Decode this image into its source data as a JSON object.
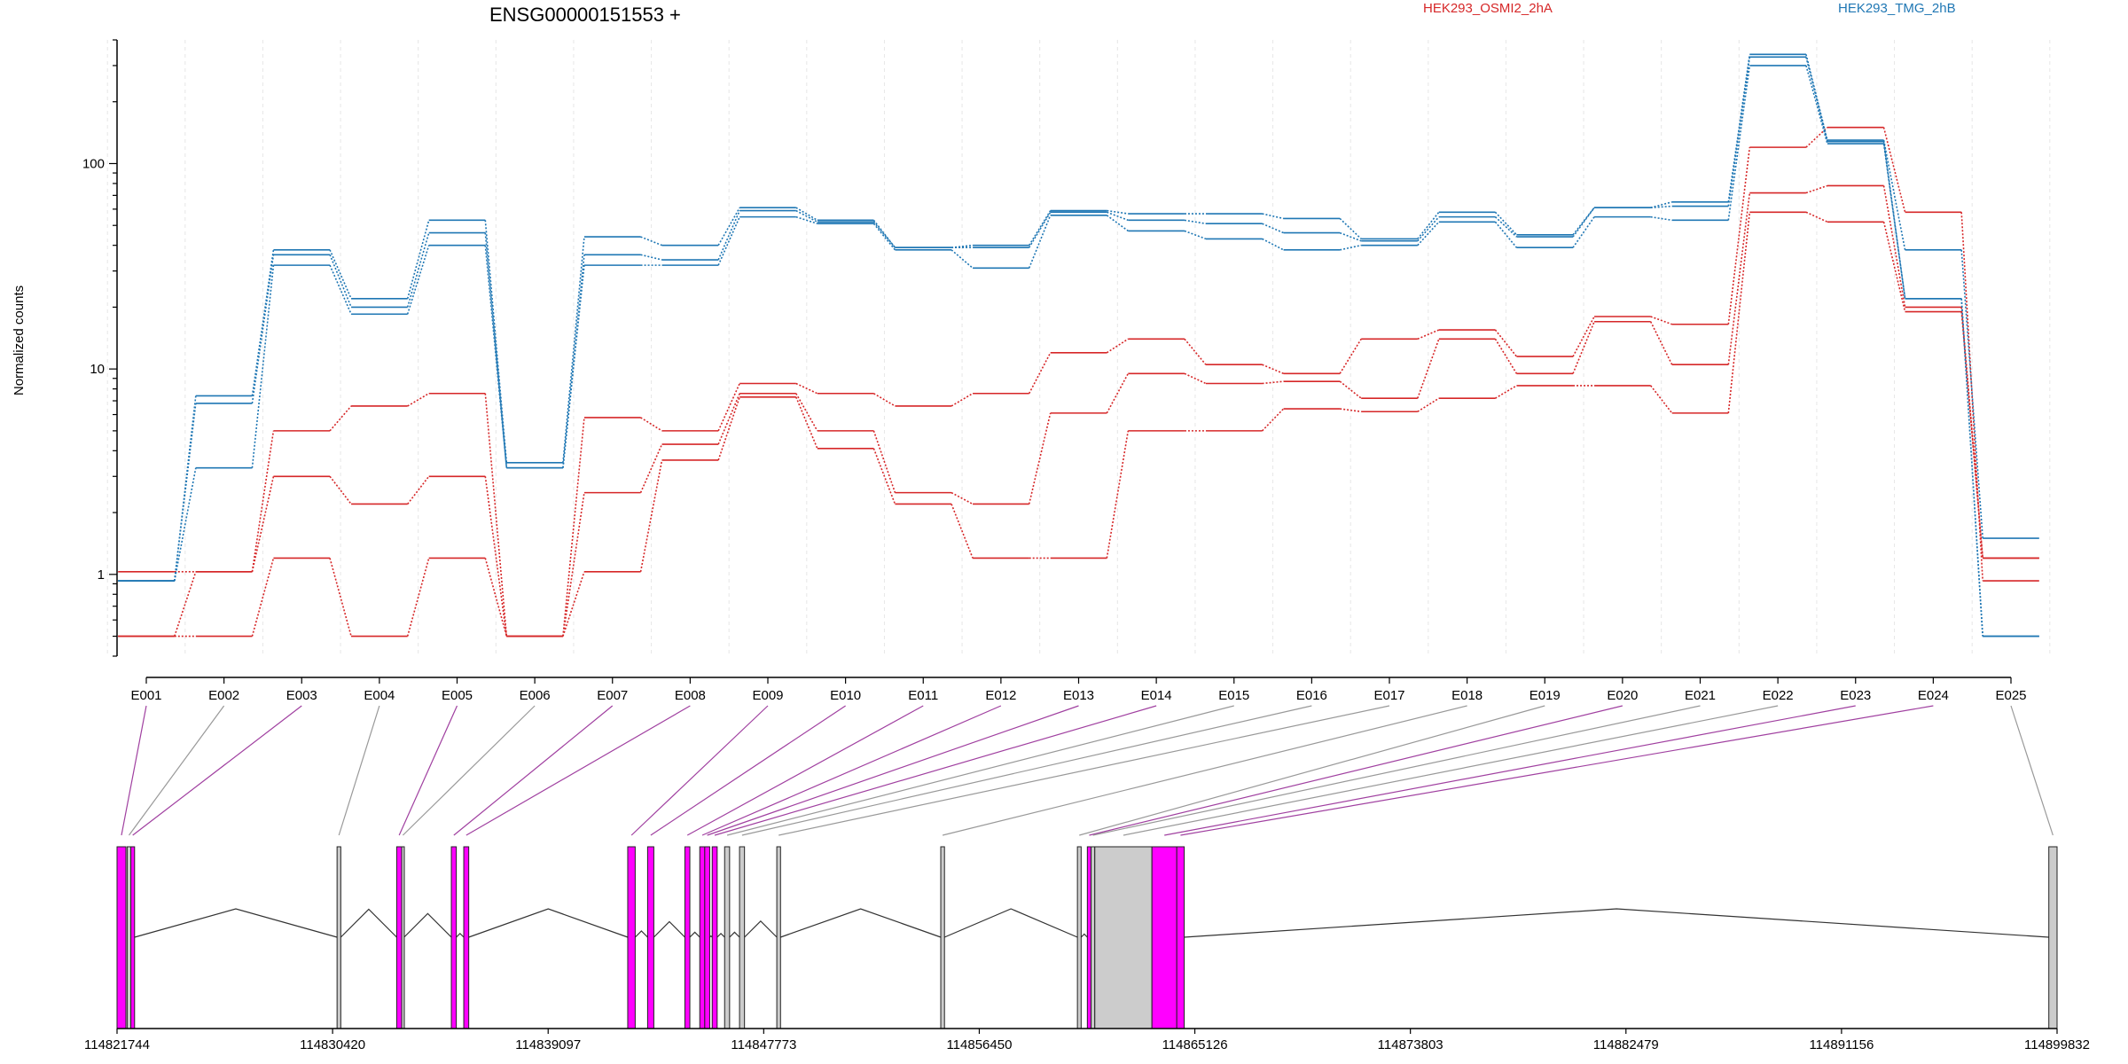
{
  "chart_data": {
    "type": "line",
    "title": "ENSG00000151553 +",
    "ylabel": "Normalized counts",
    "xlabel": "",
    "y_scale": "log",
    "ylim": [
      0.4,
      400
    ],
    "y_ticks": [
      {
        "value": 1,
        "label": "1"
      },
      {
        "value": 10,
        "label": "10"
      },
      {
        "value": 100,
        "label": "100"
      }
    ],
    "grid": "vertical",
    "legend_placement": "top",
    "categories": [
      "E001",
      "E002",
      "E003",
      "E004",
      "E005",
      "E006",
      "E007",
      "E008",
      "E009",
      "E010",
      "E011",
      "E012",
      "E013",
      "E014",
      "E015",
      "E016",
      "E017",
      "E018",
      "E019",
      "E020",
      "E021",
      "E022",
      "E023",
      "E024",
      "E025"
    ],
    "groups": [
      {
        "label": "HEK293_OSMI2_2hA",
        "color": "#d62728"
      },
      {
        "label": "HEK293_TMG_2hB",
        "color": "#1f77b4"
      }
    ],
    "series": [
      {
        "group": 0,
        "values": [
          1.03,
          1.03,
          5.0,
          6.6,
          7.6,
          0.5,
          5.8,
          5.0,
          8.5,
          7.6,
          6.6,
          7.6,
          12,
          14,
          10.5,
          9.5,
          14,
          15.5,
          11.5,
          18,
          16.5,
          120,
          150,
          58,
          0.93
        ]
      },
      {
        "group": 0,
        "values": [
          0.5,
          1.03,
          3.0,
          2.2,
          3.0,
          0.5,
          2.5,
          4.3,
          7.6,
          5.0,
          2.5,
          2.2,
          6.1,
          9.5,
          8.5,
          8.7,
          7.2,
          14,
          9.5,
          17,
          10.5,
          72,
          78,
          20,
          1.2
        ]
      },
      {
        "group": 0,
        "values": [
          0.5,
          0.5,
          1.2,
          0.5,
          1.2,
          0.5,
          1.03,
          3.6,
          7.3,
          4.1,
          2.2,
          1.2,
          1.2,
          5.0,
          5.0,
          6.4,
          6.2,
          7.2,
          8.3,
          8.3,
          6.1,
          58,
          52,
          19,
          1.2
        ]
      },
      {
        "group": 1,
        "values": [
          0.93,
          7.4,
          38,
          22,
          53,
          3.5,
          44,
          40,
          61,
          53,
          39,
          40,
          59,
          57,
          57,
          54,
          43,
          58,
          45,
          61,
          65,
          340,
          130,
          38,
          1.5
        ]
      },
      {
        "group": 1,
        "values": [
          0.93,
          6.8,
          36,
          20,
          46,
          3.3,
          36,
          34,
          59,
          52,
          39,
          39,
          58,
          53,
          51,
          46,
          42,
          55,
          44,
          61,
          62,
          330,
          128,
          22,
          0.5
        ]
      },
      {
        "group": 1,
        "values": [
          0.93,
          3.3,
          32,
          18.5,
          40,
          3.3,
          32,
          32,
          55,
          51,
          38,
          31,
          56,
          47,
          43,
          38,
          40,
          52,
          39,
          55,
          53,
          300,
          125,
          22,
          0.5
        ]
      }
    ],
    "genomic_axis": {
      "range": [
        114821744,
        114899832
      ],
      "tick_labels": [
        "114821744",
        "114830420",
        "114839097",
        "114847773",
        "114856450",
        "114865126",
        "114873803",
        "114882479",
        "114891156",
        "114899832"
      ]
    },
    "exons": [
      {
        "id": "E001",
        "start": 114821744,
        "end": 114822100,
        "tested": true
      },
      {
        "id": "E002",
        "start": 114822150,
        "end": 114822300,
        "tested": false
      },
      {
        "id": "E003",
        "start": 114822300,
        "end": 114822450,
        "tested": true
      },
      {
        "id": "E004",
        "start": 114830600,
        "end": 114830750,
        "tested": false
      },
      {
        "id": "E005",
        "start": 114833000,
        "end": 114833200,
        "tested": true
      },
      {
        "id": "E006",
        "start": 114833200,
        "end": 114833300,
        "tested": false
      },
      {
        "id": "E007",
        "start": 114835200,
        "end": 114835400,
        "tested": true
      },
      {
        "id": "E008",
        "start": 114835700,
        "end": 114835900,
        "tested": true
      },
      {
        "id": "E009",
        "start": 114842300,
        "end": 114842600,
        "tested": true
      },
      {
        "id": "E010",
        "start": 114843100,
        "end": 114843350,
        "tested": true
      },
      {
        "id": "E011",
        "start": 114844600,
        "end": 114844800,
        "tested": true
      },
      {
        "id": "E012",
        "start": 114845200,
        "end": 114845400,
        "tested": true
      },
      {
        "id": "E013",
        "start": 114845400,
        "end": 114845600,
        "tested": true
      },
      {
        "id": "E014",
        "start": 114845700,
        "end": 114845900,
        "tested": true
      },
      {
        "id": "E015",
        "start": 114846200,
        "end": 114846400,
        "tested": false
      },
      {
        "id": "E016",
        "start": 114846800,
        "end": 114847000,
        "tested": false
      },
      {
        "id": "E017",
        "start": 114848300,
        "end": 114848450,
        "tested": false
      },
      {
        "id": "E018",
        "start": 114854900,
        "end": 114855050,
        "tested": false
      },
      {
        "id": "E019",
        "start": 114860400,
        "end": 114860550,
        "tested": false
      },
      {
        "id": "E020",
        "start": 114860800,
        "end": 114860950,
        "tested": true
      },
      {
        "id": "E021",
        "start": 114860950,
        "end": 114861100,
        "tested": false
      },
      {
        "id": "E022",
        "start": 114861100,
        "end": 114863400,
        "tested": false
      },
      {
        "id": "E023",
        "start": 114863400,
        "end": 114864400,
        "tested": true
      },
      {
        "id": "E024",
        "start": 114864400,
        "end": 114864700,
        "tested": true
      },
      {
        "id": "E025",
        "start": 114899500,
        "end": 114899832,
        "tested": false
      }
    ],
    "tested_color": "#ff00ff",
    "untested_color": "#cccccc",
    "tested_line_color": "#a040a0",
    "untested_line_color": "#999999"
  }
}
